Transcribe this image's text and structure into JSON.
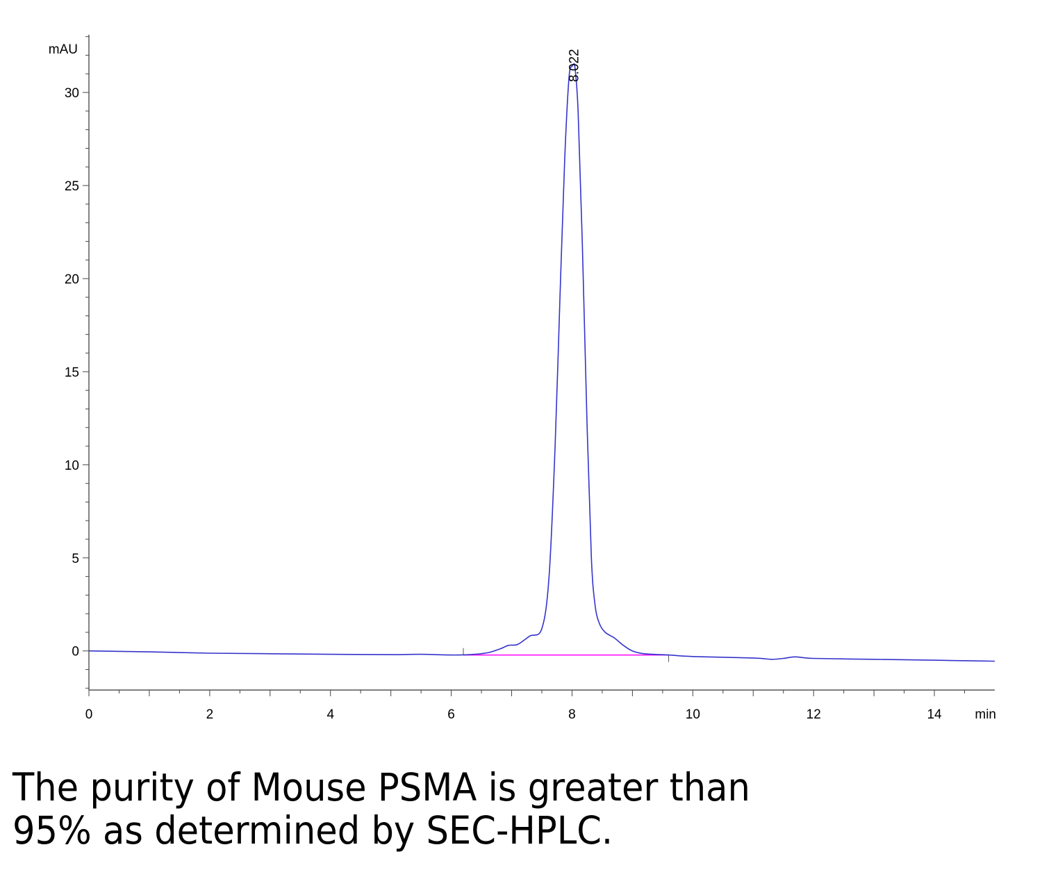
{
  "chart_data": {
    "type": "line",
    "y_unit_label": "mAU",
    "x_unit_label": "min",
    "xlim": [
      0,
      15
    ],
    "ylim": [
      -2.1,
      33.1
    ],
    "x_ticks": [
      "0",
      "2",
      "4",
      "6",
      "8",
      "10",
      "12",
      "14"
    ],
    "y_ticks": [
      "0",
      "5",
      "10",
      "15",
      "20",
      "25",
      "30"
    ],
    "peak_label": "8.022",
    "peak_retention_time": 8.022,
    "colors": {
      "trace": "#3333cc",
      "baseline": "#ff00ff"
    },
    "series": [
      {
        "x": [
          0,
          1,
          2,
          3,
          4,
          5,
          5.5,
          6,
          6.3,
          6.6,
          6.8,
          6.95,
          7.1,
          7.3,
          7.5,
          7.62,
          7.72,
          7.8,
          7.88,
          7.95,
          8.0,
          8.022,
          8.05,
          8.1,
          8.17,
          8.25,
          8.32,
          8.38,
          8.45,
          8.55,
          8.7,
          8.85,
          9.0,
          9.2,
          9.6,
          10,
          11,
          11.3,
          11.5,
          11.7,
          12,
          13,
          14,
          15
        ],
        "y": [
          0.0,
          -0.05,
          -0.12,
          -0.15,
          -0.18,
          -0.2,
          -0.18,
          -0.22,
          -0.2,
          -0.1,
          0.1,
          0.3,
          0.35,
          0.8,
          1.2,
          4.0,
          11.0,
          19.0,
          26.5,
          30.8,
          31.4,
          31.5,
          31.3,
          29.0,
          22.0,
          12.0,
          5.0,
          2.5,
          1.5,
          1.0,
          0.7,
          0.3,
          0.0,
          -0.15,
          -0.22,
          -0.3,
          -0.38,
          -0.45,
          -0.4,
          -0.32,
          -0.4,
          -0.45,
          -0.5,
          -0.55
        ]
      }
    ],
    "baseline_x": [
      6.2,
      9.6
    ],
    "baseline_y": [
      -0.22,
      -0.22
    ],
    "grid": false
  },
  "caption": {
    "line1": "The purity of Mouse PSMA is greater than",
    "line2": "95% as determined by SEC-HPLC."
  }
}
